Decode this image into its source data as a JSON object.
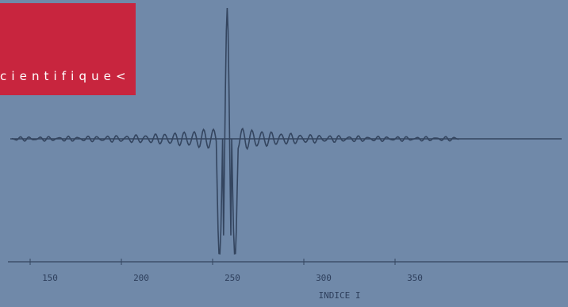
{
  "heading": {
    "text": "cientifique<"
  },
  "chart_data": {
    "type": "line",
    "xlabel": "INDICE I",
    "ylabel": "",
    "title": "",
    "xlim": [
      137,
      386
    ],
    "ylim": [
      -1,
      1
    ],
    "xticks": [
      150,
      200,
      250,
      300,
      350
    ],
    "xtick_labels": [
      "150",
      "200",
      "250",
      "300",
      "350"
    ],
    "baseline": 0,
    "central_spike": {
      "x": 258,
      "peak": 1.0,
      "trough": -0.9
    },
    "grid": false,
    "legend": "none"
  },
  "colors": {
    "background": "#7089a9",
    "accent_block": "#c8253e",
    "trace": "#34455f",
    "text": "#ffffff"
  }
}
